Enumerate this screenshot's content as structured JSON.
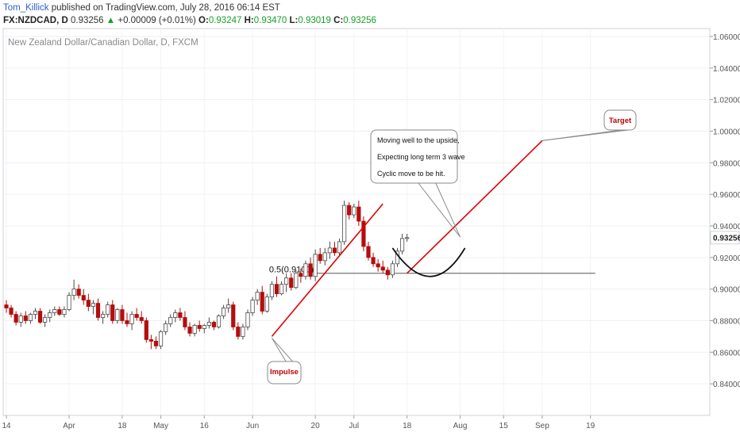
{
  "header": {
    "author": "Tom_Killick",
    "published": "published on TradingView.com, July 28, 2016 06:14 EST",
    "symbol": "FX:NZDCAD, D",
    "last": "0.93256",
    "change": "+0.00009 (+0.01%)",
    "open_label": "O:",
    "open": "0.93247",
    "high_label": "H:",
    "high": "0.93470",
    "low_label": "L:",
    "low": "0.93019",
    "close_label": "C:",
    "close": "0.93256"
  },
  "chart_data": {
    "type": "candlestick",
    "title": "New Zealand Dollar/Canadian Dollar, D, FXCM",
    "y_ticks": [
      "1.06000",
      "1.04000",
      "1.02000",
      "1.00000",
      "0.98000",
      "0.96000",
      "0.94000",
      "0.92000",
      "0.90000",
      "0.88000",
      "0.86000",
      "0.84000"
    ],
    "ylim": [
      0.82,
      1.065
    ],
    "x_ticks": [
      "14",
      "Apr",
      "18",
      "May",
      "16",
      "Jun",
      "20",
      "Jul",
      "18",
      "Aug",
      "15",
      "Sep",
      "19"
    ],
    "last_price_label": "0.93256",
    "grid": true,
    "colors": {
      "up": "#ffffff",
      "up_border": "#4a4a4a",
      "down": "#b50d0d",
      "trend": "#e00000",
      "arc": "#111111",
      "level": "#555555"
    },
    "candles": [
      [
        0.89,
        0.893,
        0.885,
        0.888
      ],
      [
        0.888,
        0.89,
        0.882,
        0.884
      ],
      [
        0.884,
        0.886,
        0.877,
        0.879
      ],
      [
        0.879,
        0.885,
        0.876,
        0.883
      ],
      [
        0.883,
        0.886,
        0.878,
        0.88
      ],
      [
        0.88,
        0.885,
        0.878,
        0.884
      ],
      [
        0.884,
        0.888,
        0.881,
        0.886
      ],
      [
        0.886,
        0.888,
        0.878,
        0.879
      ],
      [
        0.879,
        0.884,
        0.876,
        0.882
      ],
      [
        0.882,
        0.887,
        0.879,
        0.885
      ],
      [
        0.885,
        0.889,
        0.883,
        0.887
      ],
      [
        0.887,
        0.889,
        0.883,
        0.884
      ],
      [
        0.884,
        0.889,
        0.882,
        0.887
      ],
      [
        0.887,
        0.898,
        0.886,
        0.896
      ],
      [
        0.896,
        0.906,
        0.893,
        0.9
      ],
      [
        0.9,
        0.903,
        0.894,
        0.896
      ],
      [
        0.896,
        0.9,
        0.89,
        0.893
      ],
      [
        0.893,
        0.897,
        0.886,
        0.889
      ],
      [
        0.889,
        0.893,
        0.884,
        0.891
      ],
      [
        0.891,
        0.894,
        0.88,
        0.882
      ],
      [
        0.882,
        0.886,
        0.878,
        0.884
      ],
      [
        0.884,
        0.892,
        0.882,
        0.89
      ],
      [
        0.89,
        0.893,
        0.878,
        0.88
      ],
      [
        0.88,
        0.888,
        0.878,
        0.887
      ],
      [
        0.887,
        0.89,
        0.878,
        0.88
      ],
      [
        0.88,
        0.885,
        0.876,
        0.878
      ],
      [
        0.878,
        0.886,
        0.874,
        0.884
      ],
      [
        0.884,
        0.888,
        0.88,
        0.882
      ],
      [
        0.882,
        0.886,
        0.878,
        0.88
      ],
      [
        0.88,
        0.882,
        0.866,
        0.868
      ],
      [
        0.868,
        0.871,
        0.862,
        0.867
      ],
      [
        0.867,
        0.87,
        0.862,
        0.864
      ],
      [
        0.864,
        0.874,
        0.862,
        0.873
      ],
      [
        0.873,
        0.88,
        0.871,
        0.878
      ],
      [
        0.878,
        0.884,
        0.876,
        0.882
      ],
      [
        0.882,
        0.887,
        0.879,
        0.885
      ],
      [
        0.885,
        0.888,
        0.88,
        0.882
      ],
      [
        0.882,
        0.886,
        0.874,
        0.876
      ],
      [
        0.876,
        0.879,
        0.87,
        0.872
      ],
      [
        0.872,
        0.878,
        0.87,
        0.877
      ],
      [
        0.877,
        0.88,
        0.873,
        0.875
      ],
      [
        0.875,
        0.878,
        0.872,
        0.877
      ],
      [
        0.877,
        0.882,
        0.875,
        0.879
      ],
      [
        0.879,
        0.88,
        0.874,
        0.876
      ],
      [
        0.876,
        0.884,
        0.875,
        0.883
      ],
      [
        0.883,
        0.89,
        0.881,
        0.888
      ],
      [
        0.888,
        0.894,
        0.885,
        0.89
      ],
      [
        0.89,
        0.892,
        0.874,
        0.876
      ],
      [
        0.876,
        0.879,
        0.868,
        0.87
      ],
      [
        0.87,
        0.878,
        0.868,
        0.876
      ],
      [
        0.876,
        0.887,
        0.874,
        0.885
      ],
      [
        0.885,
        0.895,
        0.883,
        0.893
      ],
      [
        0.893,
        0.9,
        0.89,
        0.898
      ],
      [
        0.898,
        0.902,
        0.884,
        0.886
      ],
      [
        0.886,
        0.897,
        0.885,
        0.895
      ],
      [
        0.895,
        0.905,
        0.893,
        0.903
      ],
      [
        0.903,
        0.908,
        0.895,
        0.897
      ],
      [
        0.897,
        0.905,
        0.896,
        0.903
      ],
      [
        0.903,
        0.91,
        0.898,
        0.907
      ],
      [
        0.907,
        0.91,
        0.899,
        0.901
      ],
      [
        0.901,
        0.912,
        0.9,
        0.91
      ],
      [
        0.91,
        0.913,
        0.904,
        0.908
      ],
      [
        0.908,
        0.918,
        0.906,
        0.916
      ],
      [
        0.916,
        0.92,
        0.906,
        0.908
      ],
      [
        0.908,
        0.925,
        0.905,
        0.922
      ],
      [
        0.922,
        0.926,
        0.916,
        0.918
      ],
      [
        0.918,
        0.926,
        0.915,
        0.923
      ],
      [
        0.923,
        0.93,
        0.919,
        0.926
      ],
      [
        0.926,
        0.93,
        0.921,
        0.923
      ],
      [
        0.923,
        0.932,
        0.921,
        0.93
      ],
      [
        0.93,
        0.956,
        0.928,
        0.953
      ],
      [
        0.953,
        0.955,
        0.944,
        0.947
      ],
      [
        0.947,
        0.954,
        0.945,
        0.952
      ],
      [
        0.952,
        0.956,
        0.94,
        0.943
      ],
      [
        0.943,
        0.946,
        0.924,
        0.927
      ],
      [
        0.927,
        0.93,
        0.918,
        0.92
      ],
      [
        0.92,
        0.923,
        0.914,
        0.916
      ],
      [
        0.916,
        0.919,
        0.911,
        0.914
      ],
      [
        0.914,
        0.918,
        0.91,
        0.912
      ],
      [
        0.912,
        0.914,
        0.906,
        0.909
      ],
      [
        0.909,
        0.918,
        0.907,
        0.916
      ],
      [
        0.916,
        0.926,
        0.914,
        0.924
      ],
      [
        0.924,
        0.935,
        0.922,
        0.932
      ],
      [
        0.932,
        0.935,
        0.93,
        0.9326
      ]
    ],
    "impulse_line": {
      "from": [
        55,
        0.87
      ],
      "to": [
        78,
        0.954
      ]
    },
    "target_line": {
      "from": [
        83,
        0.91
      ],
      "to": [
        111,
        0.994
      ]
    },
    "fib_level": {
      "label": "0.5(0.9100)",
      "value": 0.91,
      "from_index": 64,
      "to_index": 122
    },
    "arc": {
      "from": [
        80,
        0.926
      ],
      "bottom": [
        88,
        0.908
      ],
      "to": [
        95,
        0.926
      ]
    },
    "annotations": [
      {
        "name": "impulse",
        "text": "Impulse",
        "anchor_index": 55,
        "anchor_value": 0.869
      },
      {
        "name": "target",
        "text": "Target",
        "anchor_index": 111,
        "anchor_value": 0.994
      },
      {
        "name": "comment",
        "lines": [
          "Moving well to the upside,",
          "Expecting long term 3 wave",
          "Cyclic move to be hit."
        ],
        "anchor_index": 94,
        "anchor_value": 0.933
      }
    ]
  }
}
